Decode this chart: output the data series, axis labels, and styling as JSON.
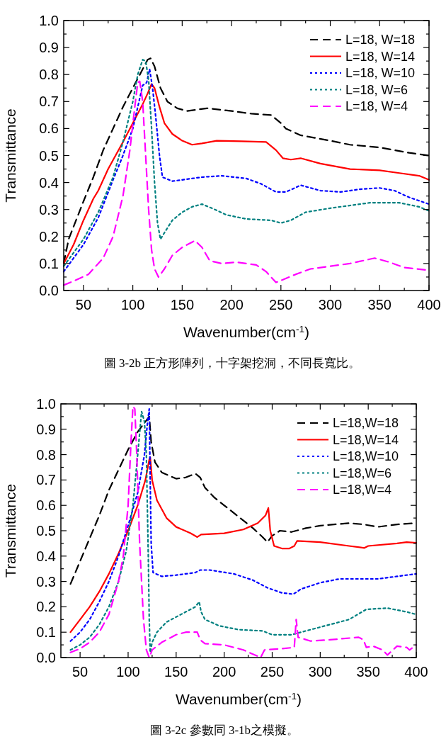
{
  "chart_data": [
    {
      "type": "line",
      "xlabel": "Wavenumber(cm$^{-1}$)",
      "ylabel": "Transmittance",
      "xlim": [
        30,
        400
      ],
      "ylim": [
        0,
        1
      ],
      "xticks": [
        50,
        {
          "value": 75,
          "label": null
        },
        100,
        {
          "value": 125,
          "label": null
        },
        150,
        {
          "value": 175,
          "label": null
        },
        200,
        {
          "value": 225,
          "label": null
        },
        250,
        {
          "value": 275,
          "label": null
        },
        300,
        {
          "value": 325,
          "label": null
        },
        350,
        {
          "value": 375,
          "label": null
        },
        400
      ],
      "yticks": [
        {
          "value": 0,
          "label": "0.0"
        },
        {
          "value": 0.05,
          "label": null
        },
        0.1,
        {
          "value": 0.15,
          "label": null
        },
        0.2,
        {
          "value": 0.25,
          "label": null
        },
        0.3,
        {
          "value": 0.35,
          "label": null
        },
        0.4,
        {
          "value": 0.45,
          "label": null
        },
        0.5,
        {
          "value": 0.55,
          "label": null
        },
        0.6,
        {
          "value": 0.65,
          "label": null
        },
        0.7,
        {
          "value": 0.75,
          "label": null
        },
        0.8,
        {
          "value": 0.85,
          "label": null
        },
        0.9,
        {
          "value": 0.95,
          "label": null
        },
        {
          "value": 1,
          "label": "1.0"
        }
      ],
      "legend": "top right",
      "grid": false,
      "series": [
        {
          "name": "L=18, W=18",
          "color": "#000000",
          "line_style": "dashed",
          "x": [
            30,
            35,
            50,
            60,
            70,
            80,
            90,
            100,
            110,
            115,
            118,
            122,
            128,
            135,
            145,
            155,
            165,
            175,
            200,
            220,
            240,
            250,
            255,
            270,
            300,
            320,
            350,
            380,
            400
          ],
          "values": [
            0.1,
            0.19,
            0.33,
            0.42,
            0.52,
            0.6,
            0.68,
            0.75,
            0.82,
            0.855,
            0.86,
            0.83,
            0.75,
            0.7,
            0.675,
            0.665,
            0.67,
            0.675,
            0.665,
            0.655,
            0.65,
            0.62,
            0.6,
            0.575,
            0.555,
            0.54,
            0.53,
            0.51,
            0.5
          ]
        },
        {
          "name": "L=18, W=14",
          "color": "#ff0000",
          "line_style": "solid",
          "x": [
            30,
            40,
            50,
            60,
            65,
            75,
            90,
            100,
            110,
            115,
            119,
            122,
            127,
            132,
            140,
            150,
            160,
            170,
            185,
            210,
            235,
            245,
            252,
            260,
            270,
            290,
            320,
            350,
            370,
            390,
            400
          ],
          "values": [
            0.1,
            0.17,
            0.26,
            0.34,
            0.37,
            0.45,
            0.55,
            0.62,
            0.69,
            0.73,
            0.765,
            0.75,
            0.68,
            0.62,
            0.58,
            0.555,
            0.54,
            0.545,
            0.555,
            0.553,
            0.55,
            0.52,
            0.49,
            0.485,
            0.49,
            0.47,
            0.45,
            0.445,
            0.435,
            0.425,
            0.41
          ]
        },
        {
          "name": "L=18, W=10",
          "color": "#0000ff",
          "line_style": "dotted",
          "x": [
            30,
            35,
            50,
            65,
            80,
            90,
            100,
            105,
            110,
            114,
            117,
            120,
            123,
            127,
            130,
            140,
            150,
            170,
            190,
            215,
            230,
            245,
            255,
            270,
            290,
            310,
            330,
            350,
            365,
            380,
            400
          ],
          "values": [
            0.07,
            0.095,
            0.17,
            0.27,
            0.41,
            0.5,
            0.6,
            0.68,
            0.76,
            0.77,
            0.82,
            0.75,
            0.65,
            0.5,
            0.42,
            0.405,
            0.41,
            0.42,
            0.425,
            0.415,
            0.395,
            0.365,
            0.365,
            0.39,
            0.37,
            0.365,
            0.375,
            0.38,
            0.37,
            0.345,
            0.32
          ]
        },
        {
          "name": "L=18, W=6",
          "color": "#008080",
          "line_style": "dotted",
          "x": [
            30,
            35,
            50,
            65,
            80,
            90,
            100,
            105,
            110,
            113,
            116,
            119,
            122,
            125,
            128,
            133,
            140,
            150,
            160,
            170,
            180,
            195,
            215,
            240,
            250,
            260,
            275,
            300,
            320,
            340,
            355,
            370,
            390,
            400
          ],
          "values": [
            0.09,
            0.115,
            0.19,
            0.29,
            0.42,
            0.55,
            0.7,
            0.8,
            0.855,
            0.85,
            0.78,
            0.6,
            0.4,
            0.25,
            0.19,
            0.22,
            0.26,
            0.29,
            0.31,
            0.32,
            0.305,
            0.28,
            0.265,
            0.26,
            0.25,
            0.26,
            0.29,
            0.305,
            0.315,
            0.325,
            0.325,
            0.325,
            0.31,
            0.295
          ]
        },
        {
          "name": "L=18, W=4",
          "color": "#ff00ff",
          "line_style": "dashed",
          "x": [
            30,
            40,
            55,
            70,
            80,
            90,
            97,
            102,
            105,
            107,
            110,
            113,
            116,
            119,
            122,
            126,
            132,
            140,
            150,
            163,
            170,
            178,
            190,
            205,
            225,
            235,
            245,
            252,
            265,
            280,
            300,
            320,
            345,
            360,
            375,
            400
          ],
          "values": [
            0.02,
            0.035,
            0.06,
            0.12,
            0.2,
            0.35,
            0.52,
            0.68,
            0.77,
            0.775,
            0.7,
            0.5,
            0.3,
            0.15,
            0.08,
            0.05,
            0.08,
            0.13,
            0.16,
            0.185,
            0.16,
            0.11,
            0.1,
            0.105,
            0.095,
            0.07,
            0.03,
            0.04,
            0.06,
            0.08,
            0.09,
            0.1,
            0.12,
            0.105,
            0.085,
            0.075
          ]
        }
      ],
      "annotations": [
        "圖 3-2b 正方形陣列，十字架挖洞，不同長寬比。"
      ]
    },
    {
      "type": "line",
      "xlabel": "Wavenumber(cm$^{-1}$)",
      "ylabel": "Transmittance",
      "xlim": [
        30,
        400
      ],
      "ylim": [
        0,
        1
      ],
      "xticks": [
        50,
        {
          "value": 75,
          "label": null
        },
        100,
        {
          "value": 125,
          "label": null
        },
        150,
        {
          "value": 175,
          "label": null
        },
        200,
        {
          "value": 225,
          "label": null
        },
        250,
        {
          "value": 275,
          "label": null
        },
        300,
        {
          "value": 325,
          "label": null
        },
        350,
        {
          "value": 375,
          "label": null
        },
        400
      ],
      "yticks": [
        {
          "value": 0,
          "label": "0.0"
        },
        {
          "value": 0.05,
          "label": null
        },
        0.1,
        {
          "value": 0.15,
          "label": null
        },
        0.2,
        {
          "value": 0.25,
          "label": null
        },
        0.3,
        {
          "value": 0.35,
          "label": null
        },
        0.4,
        {
          "value": 0.45,
          "label": null
        },
        0.5,
        {
          "value": 0.55,
          "label": null
        },
        0.6,
        {
          "value": 0.65,
          "label": null
        },
        0.7,
        {
          "value": 0.75,
          "label": null
        },
        0.8,
        {
          "value": 0.85,
          "label": null
        },
        0.9,
        {
          "value": 0.95,
          "label": null
        },
        {
          "value": 1,
          "label": "1.0"
        }
      ],
      "legend": "top right",
      "grid": false,
      "series": [
        {
          "name": "L=18,W=18",
          "color": "#000000",
          "line_style": "dashed",
          "x": [
            40,
            50,
            60,
            70,
            80,
            90,
            100,
            110,
            118,
            122,
            124,
            128,
            135,
            150,
            160,
            170,
            175,
            180,
            190,
            210,
            230,
            240,
            245,
            250,
            258,
            270,
            285,
            300,
            330,
            345,
            360,
            380,
            400
          ],
          "values": [
            0.29,
            0.38,
            0.47,
            0.56,
            0.66,
            0.74,
            0.82,
            0.89,
            0.93,
            0.95,
            0.85,
            0.77,
            0.73,
            0.705,
            0.71,
            0.725,
            0.71,
            0.67,
            0.63,
            0.57,
            0.51,
            0.475,
            0.455,
            0.48,
            0.5,
            0.495,
            0.51,
            0.52,
            0.53,
            0.525,
            0.515,
            0.525,
            0.53
          ]
        },
        {
          "name": "L=18,W=14",
          "color": "#ff0000",
          "line_style": "solid",
          "x": [
            40,
            50,
            60,
            70,
            80,
            90,
            100,
            110,
            118,
            122,
            123,
            125,
            130,
            140,
            150,
            165,
            172,
            176,
            200,
            220,
            235,
            243,
            246,
            248,
            252,
            260,
            268,
            273,
            276,
            300,
            330,
            346,
            350,
            380,
            390,
            400
          ],
          "values": [
            0.1,
            0.15,
            0.2,
            0.26,
            0.33,
            0.41,
            0.5,
            0.6,
            0.7,
            0.78,
            0.79,
            0.7,
            0.62,
            0.55,
            0.515,
            0.49,
            0.475,
            0.485,
            0.49,
            0.505,
            0.53,
            0.56,
            0.59,
            0.5,
            0.44,
            0.43,
            0.43,
            0.44,
            0.46,
            0.455,
            0.44,
            0.432,
            0.44,
            0.45,
            0.455,
            0.452
          ]
        },
        {
          "name": "L=18,W=10",
          "color": "#0000ff",
          "line_style": "dotted",
          "x": [
            40,
            50,
            60,
            70,
            80,
            90,
            100,
            110,
            117,
            120,
            122,
            123,
            124,
            126,
            135,
            150,
            170,
            175,
            185,
            210,
            230,
            245,
            260,
            272,
            280,
            300,
            320,
            345,
            360,
            380,
            400
          ],
          "values": [
            0.065,
            0.1,
            0.15,
            0.22,
            0.3,
            0.4,
            0.52,
            0.65,
            0.8,
            0.92,
            0.98,
            0.7,
            0.45,
            0.335,
            0.32,
            0.325,
            0.335,
            0.345,
            0.345,
            0.33,
            0.305,
            0.275,
            0.255,
            0.25,
            0.27,
            0.295,
            0.31,
            0.31,
            0.31,
            0.32,
            0.33
          ]
        },
        {
          "name": "L=18,W=6",
          "color": "#008080",
          "line_style": "dotted",
          "x": [
            40,
            50,
            60,
            70,
            80,
            90,
            98,
            105,
            110,
            114,
            117,
            119,
            121,
            122,
            123,
            125,
            130,
            140,
            155,
            170,
            174,
            176,
            180,
            195,
            215,
            240,
            250,
            270,
            280,
            300,
            330,
            348,
            370,
            390,
            400
          ],
          "values": [
            0.03,
            0.05,
            0.08,
            0.13,
            0.2,
            0.3,
            0.42,
            0.6,
            0.8,
            0.97,
            0.93,
            0.8,
            0.4,
            0.15,
            0.02,
            0.06,
            0.1,
            0.14,
            0.17,
            0.2,
            0.22,
            0.18,
            0.15,
            0.125,
            0.11,
            0.105,
            0.09,
            0.09,
            0.1,
            0.12,
            0.15,
            0.19,
            0.195,
            0.18,
            0.17
          ]
        },
        {
          "name": "L=18,W=4",
          "color": "#ff00ff",
          "line_style": "dashed",
          "x": [
            40,
            50,
            60,
            70,
            80,
            90,
            95,
            100,
            103,
            105,
            107,
            109,
            112,
            116,
            119,
            122,
            125,
            135,
            150,
            160,
            172,
            175,
            180,
            200,
            220,
            238,
            242,
            260,
            273,
            275,
            277,
            290,
            310,
            340,
            345,
            348,
            355,
            365,
            370,
            380,
            390,
            393,
            400
          ],
          "values": [
            0.02,
            0.035,
            0.06,
            0.1,
            0.17,
            0.3,
            0.4,
            0.6,
            0.85,
            0.99,
            0.98,
            0.8,
            0.45,
            0.15,
            0.03,
            0,
            0.03,
            0.06,
            0.09,
            0.1,
            0.1,
            0.07,
            0.055,
            0.05,
            0.03,
            0,
            0.03,
            0.035,
            0.04,
            0.15,
            0.08,
            0.065,
            0.07,
            0.08,
            0.07,
            0.04,
            0.045,
            0.03,
            0.01,
            0.045,
            0.04,
            0.03,
            0.05
          ]
        }
      ],
      "annotations": [
        "圖 3-2c 參數同 3-1b之模擬。"
      ]
    }
  ]
}
